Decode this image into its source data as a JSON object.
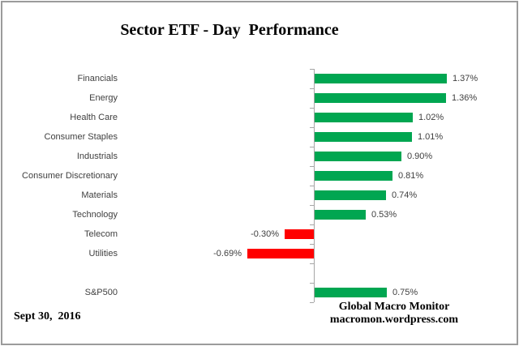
{
  "chart_data": {
    "type": "bar",
    "orientation": "horizontal",
    "title": "Sector ETF - Day  Performance",
    "categories": [
      "Financials",
      "Energy",
      "Health Care",
      "Consumer Staples",
      "Industrials",
      "Consumer Discretionary",
      "Materials",
      "Technology",
      "Telecom",
      "Utilities",
      "",
      "S&P500"
    ],
    "values": [
      1.37,
      1.36,
      1.02,
      1.01,
      0.9,
      0.81,
      0.74,
      0.53,
      -0.3,
      -0.69,
      null,
      0.75
    ],
    "value_labels": [
      "1.37%",
      "1.36%",
      "1.02%",
      "1.01%",
      "0.90%",
      "0.81%",
      "0.74%",
      "0.53%",
      "-0.30%",
      "-0.69%",
      "",
      "0.75%"
    ],
    "xlabel": "",
    "ylabel": "",
    "xlim": [
      -2.0,
      2.1
    ],
    "grid": false,
    "legend": false,
    "data_labels": true,
    "colors": {
      "positive_bar": "#00A651",
      "negative_bar": "#FF0000",
      "axis": "#A6A6A6",
      "label_text": "#404040"
    }
  },
  "footer": {
    "date": "Sept 30,  2016",
    "credit_line1": "Global Macro Monitor",
    "credit_line2": "macromon.wordpress.com"
  }
}
